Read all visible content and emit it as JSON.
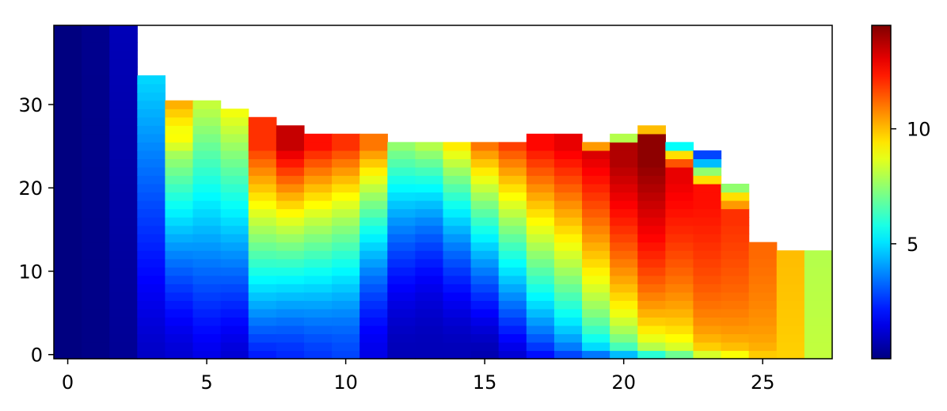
{
  "chart_data": {
    "type": "heatmap",
    "title": "",
    "xlabel": "",
    "ylabel": "",
    "xlim": [
      -0.5,
      27.5
    ],
    "ylim": [
      -0.5,
      39.5
    ],
    "x_ticks": [
      0,
      5,
      10,
      15,
      20,
      25
    ],
    "y_ticks": [
      0,
      10,
      20,
      30
    ],
    "colormap": "jet",
    "colorbar": {
      "vmin": 0,
      "vmax": 14.5,
      "ticks": [
        5,
        10
      ],
      "position": "right"
    },
    "missing_color": "#ffffff",
    "grid": false,
    "cell_rule": "value(col, row) = bottom + (peak - bottom) * min(1, row / peak_row)^shape for row < height; rows at or above height are empty (NaN)",
    "columns": [
      {
        "col": 0,
        "height": 40,
        "bottom": 0.0,
        "peak": 0.0,
        "peak_row": 40,
        "shape": 1.0
      },
      {
        "col": 1,
        "height": 40,
        "bottom": 0.1,
        "peak": 0.2,
        "peak_row": 40,
        "shape": 1.0
      },
      {
        "col": 2,
        "height": 40,
        "bottom": 0.3,
        "peak": 0.8,
        "peak_row": 40,
        "shape": 1.0
      },
      {
        "col": 3,
        "height": 34,
        "bottom": 1.0,
        "peak": 5.0,
        "peak_row": 34,
        "shape": 1.2
      },
      {
        "col": 4,
        "height": 31,
        "bottom": 1.2,
        "peak": 10.6,
        "peak_row": 31,
        "shape": 1.4
      },
      {
        "col": 5,
        "height": 31,
        "bottom": 1.5,
        "peak": 8.5,
        "peak_row": 31,
        "shape": 1.2
      },
      {
        "col": 6,
        "height": 30,
        "bottom": 1.2,
        "peak": 9.2,
        "peak_row": 30,
        "shape": 1.2
      },
      {
        "col": 7,
        "height": 29,
        "bottom": 2.2,
        "peak": 12.0,
        "peak_row": 25,
        "shape": 1.1
      },
      {
        "col": 8,
        "height": 28,
        "bottom": 2.4,
        "peak": 13.5,
        "peak_row": 25,
        "shape": 1.3
      },
      {
        "col": 9,
        "height": 27,
        "bottom": 2.6,
        "peak": 12.5,
        "peak_row": 25,
        "shape": 1.3
      },
      {
        "col": 10,
        "height": 27,
        "bottom": 2.8,
        "peak": 12.0,
        "peak_row": 25,
        "shape": 1.4
      },
      {
        "col": 11,
        "height": 27,
        "bottom": 1.5,
        "peak": 11.0,
        "peak_row": 25,
        "shape": 1.6
      },
      {
        "col": 12,
        "height": 26,
        "bottom": 0.8,
        "peak": 7.5,
        "peak_row": 25,
        "shape": 1.7
      },
      {
        "col": 13,
        "height": 26,
        "bottom": 0.8,
        "peak": 8.0,
        "peak_row": 25,
        "shape": 2.0
      },
      {
        "col": 14,
        "height": 26,
        "bottom": 0.8,
        "peak": 9.3,
        "peak_row": 25,
        "shape": 1.7
      },
      {
        "col": 15,
        "height": 26,
        "bottom": 0.7,
        "peak": 11.0,
        "peak_row": 25,
        "shape": 1.4
      },
      {
        "col": 16,
        "height": 26,
        "bottom": 1.2,
        "peak": 11.8,
        "peak_row": 25,
        "shape": 1.1
      },
      {
        "col": 17,
        "height": 27,
        "bottom": 2.0,
        "peak": 12.6,
        "peak_row": 25,
        "shape": 0.9
      },
      {
        "col": 18,
        "height": 27,
        "bottom": 2.8,
        "peak": 13.0,
        "peak_row": 25,
        "shape": 0.8
      },
      {
        "col": 19,
        "height": 26,
        "bottom": 3.5,
        "peak": 13.2,
        "peak_row": 24,
        "shape": 0.6
      },
      {
        "col": 20,
        "height": 27,
        "bottom": 4.5,
        "peak": 13.8,
        "peak_row": 23,
        "shape": 0.5
      },
      {
        "col": 21,
        "height": 28,
        "bottom": 6.0,
        "peak": 14.3,
        "peak_row": 23,
        "shape": 0.45
      },
      {
        "col": 22,
        "height": 26,
        "bottom": 7.0,
        "peak": 13.0,
        "peak_row": 21,
        "shape": 0.45
      },
      {
        "col": 23,
        "height": 25,
        "bottom": 8.5,
        "peak": 12.5,
        "peak_row": 18,
        "shape": 0.4
      },
      {
        "col": 24,
        "height": 21,
        "bottom": 9.0,
        "peak": 12.0,
        "peak_row": 16,
        "shape": 0.4
      },
      {
        "col": 25,
        "height": 14,
        "bottom": 9.8,
        "peak": 11.2,
        "peak_row": 12,
        "shape": 0.5
      },
      {
        "col": 26,
        "height": 13,
        "bottom": 9.7,
        "peak": 10.0,
        "peak_row": 12,
        "shape": 0.8
      },
      {
        "col": 27,
        "height": 13,
        "bottom": 8.2,
        "peak": 8.0,
        "peak_row": 12,
        "shape": 1.0
      }
    ],
    "overrides": [
      {
        "col": 20,
        "row": 26,
        "value": 8.0
      },
      {
        "col": 21,
        "row": 27,
        "value": 10.0
      },
      {
        "col": 22,
        "row": 25,
        "value": 5.5
      },
      {
        "col": 22,
        "row": 24,
        "value": 9.5
      },
      {
        "col": 22,
        "row": 23,
        "value": 11.5
      },
      {
        "col": 23,
        "row": 24,
        "value": 2.8
      },
      {
        "col": 23,
        "row": 23,
        "value": 4.5
      },
      {
        "col": 23,
        "row": 22,
        "value": 7.5
      },
      {
        "col": 23,
        "row": 21,
        "value": 9.5
      },
      {
        "col": 24,
        "row": 20,
        "value": 7.5
      },
      {
        "col": 24,
        "row": 19,
        "value": 9.5
      },
      {
        "col": 24,
        "row": 18,
        "value": 10.5
      },
      {
        "col": 19,
        "row": 25,
        "value": 10.5
      },
      {
        "col": 4,
        "row": 26,
        "value": 9.0
      },
      {
        "col": 4,
        "row": 25,
        "value": 8.5
      }
    ],
    "x_tick_labels": [
      "0",
      "5",
      "10",
      "15",
      "20",
      "25"
    ],
    "y_tick_labels": [
      "0",
      "10",
      "20",
      "30"
    ],
    "colorbar_tick_labels": [
      "5",
      "10"
    ]
  }
}
